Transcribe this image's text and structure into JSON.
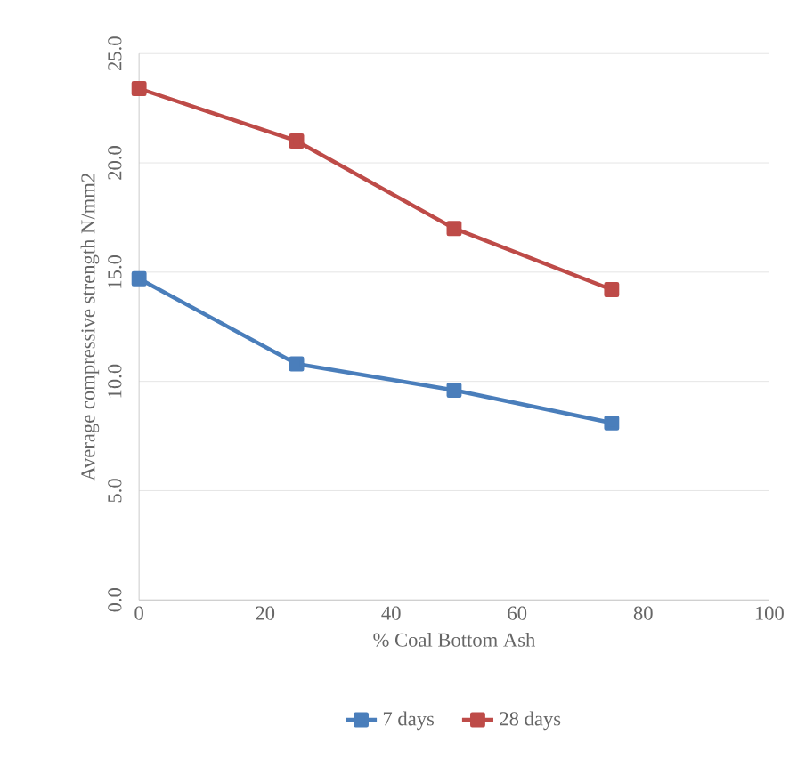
{
  "chart_data": {
    "type": "line",
    "xlabel": "% Coal Bottom Ash",
    "ylabel": "Average compressive strength N/mm2",
    "x": [
      0,
      25,
      50,
      75
    ],
    "series": [
      {
        "name": "7 days",
        "color": "#4a7ebb",
        "values": [
          14.7,
          10.8,
          9.6,
          8.1
        ]
      },
      {
        "name": "28 days",
        "color": "#be4b48",
        "values": [
          23.4,
          21.0,
          17.0,
          14.2
        ]
      }
    ],
    "xlim": [
      0,
      100
    ],
    "xticks": [
      0,
      20,
      40,
      60,
      80,
      100
    ],
    "ylim": [
      0,
      25
    ],
    "yticks": [
      {
        "value": 0,
        "label": "0.0"
      },
      {
        "value": 5,
        "label": "5.0"
      },
      {
        "value": 10,
        "label": "10.0"
      },
      {
        "value": 15,
        "label": "15.0"
      },
      {
        "value": 20,
        "label": "20.0"
      },
      {
        "value": 25,
        "label": "25.0"
      }
    ],
    "grid": "y",
    "legend": "bottom",
    "marker": "square"
  }
}
